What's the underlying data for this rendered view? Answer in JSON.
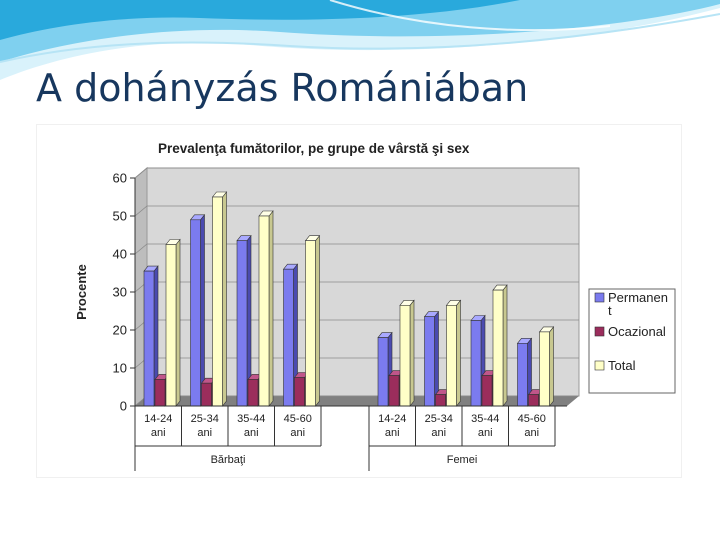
{
  "slide": {
    "title": "A dohányzás Romániában"
  },
  "colors": {
    "series": [
      "#7b7bef",
      "#9b2d5c",
      "#ffffc8"
    ],
    "series_side": [
      "#4a4ab0",
      "#6a1f40",
      "#c8c890"
    ],
    "series_top": [
      "#a9a9ff",
      "#c0568a",
      "#ffffe6"
    ],
    "wall": "#d8d8d8",
    "floor": "#808080",
    "title": "#17375e"
  },
  "chart_data": {
    "type": "bar",
    "title": "Prevalenţa fumătorilor, pe grupe de vârstă şi sex",
    "ylabel": "Procente",
    "xlabel": "",
    "ylim": [
      0,
      60
    ],
    "yticks": [
      "0",
      "10",
      "20",
      "30",
      "40",
      "50",
      "60"
    ],
    "grid": true,
    "legend_position": "right",
    "groups": [
      {
        "name": "Bărbaţi",
        "categories": [
          [
            "14-24",
            "ani"
          ],
          [
            "25-34",
            "ani"
          ],
          [
            "35-44",
            "ani"
          ],
          [
            "45-60",
            "ani"
          ]
        ]
      },
      {
        "name": "Femei",
        "categories": [
          [
            "14-24",
            "ani"
          ],
          [
            "25-34",
            "ani"
          ],
          [
            "35-44",
            "ani"
          ],
          [
            "45-60",
            "ani"
          ]
        ]
      }
    ],
    "series": [
      {
        "name": [
          "Permanen",
          "t"
        ],
        "values": [
          35.5,
          49,
          43.5,
          36,
          18,
          23.5,
          22.5,
          16.5
        ]
      },
      {
        "name": [
          "Ocazional"
        ],
        "values": [
          7,
          6,
          7,
          7.5,
          8,
          3,
          8,
          3
        ]
      },
      {
        "name": [
          "Total"
        ],
        "values": [
          42.5,
          55,
          50,
          43.5,
          26.5,
          26.5,
          30.5,
          19.5
        ]
      }
    ]
  }
}
